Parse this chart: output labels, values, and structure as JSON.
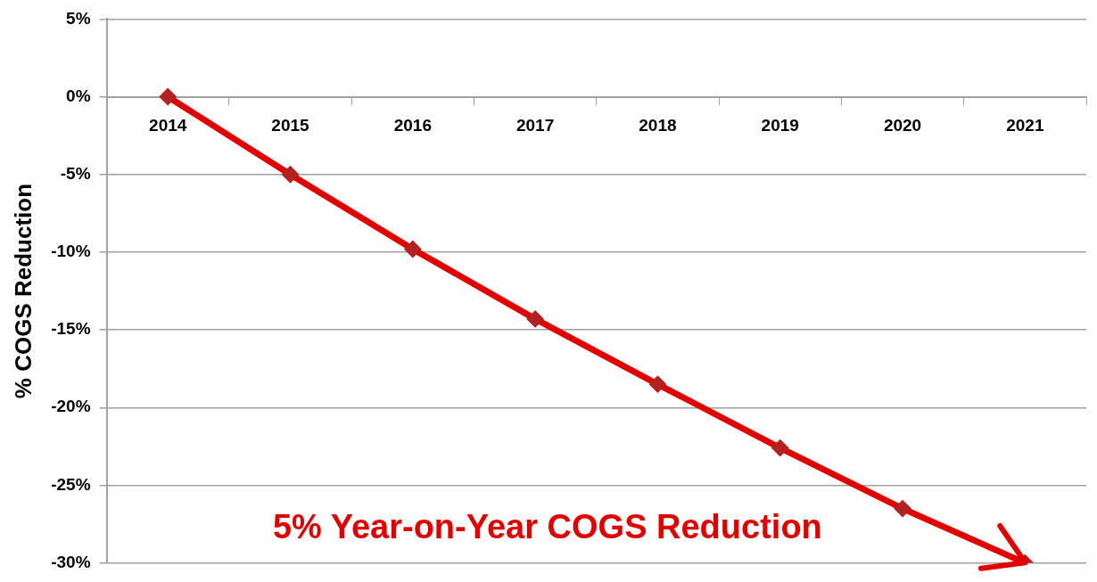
{
  "chart_data": {
    "type": "line",
    "ylabel": "% COGS Reduction",
    "categories": [
      "2014",
      "2015",
      "2016",
      "2017",
      "2018",
      "2019",
      "2020",
      "2021"
    ],
    "series": [
      {
        "color": "#e00000",
        "values": [
          0,
          -5,
          -9.8,
          -14.3,
          -18.5,
          -22.6,
          -26.5,
          -30
        ]
      }
    ],
    "ylim": [
      -30,
      5
    ],
    "yticks": [
      {
        "value": -30,
        "label": "-30%"
      },
      {
        "value": -25,
        "label": "-25%"
      },
      {
        "value": -20,
        "label": "-20%"
      },
      {
        "value": -15,
        "label": "-15%"
      },
      {
        "value": -10,
        "label": "-10%"
      },
      {
        "value": -5,
        "label": "-5%"
      },
      {
        "value": 0,
        "label": "0%"
      },
      {
        "value": 5,
        "label": "5%"
      }
    ],
    "grid": "y",
    "legend": false,
    "marker": "diamond",
    "line_style": "solid",
    "annotations": [
      "5% Year-on-Year COGS Reduction"
    ]
  }
}
